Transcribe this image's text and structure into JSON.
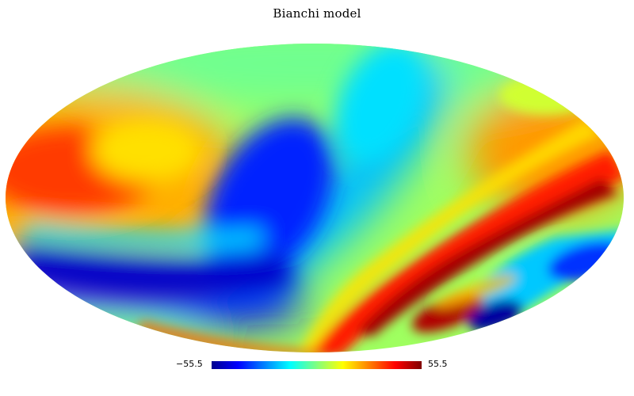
{
  "title": "Bianchi model",
  "projection": "mollweide",
  "colormap": "jet",
  "colorbar": {
    "min_label": "−55.5",
    "max_label": "55.5",
    "min": -55.5,
    "max": 55.5,
    "colors": [
      "#00008f",
      "#0000ff",
      "#00ffff",
      "#80ff80",
      "#ffff00",
      "#ff0000",
      "#800000"
    ]
  }
}
